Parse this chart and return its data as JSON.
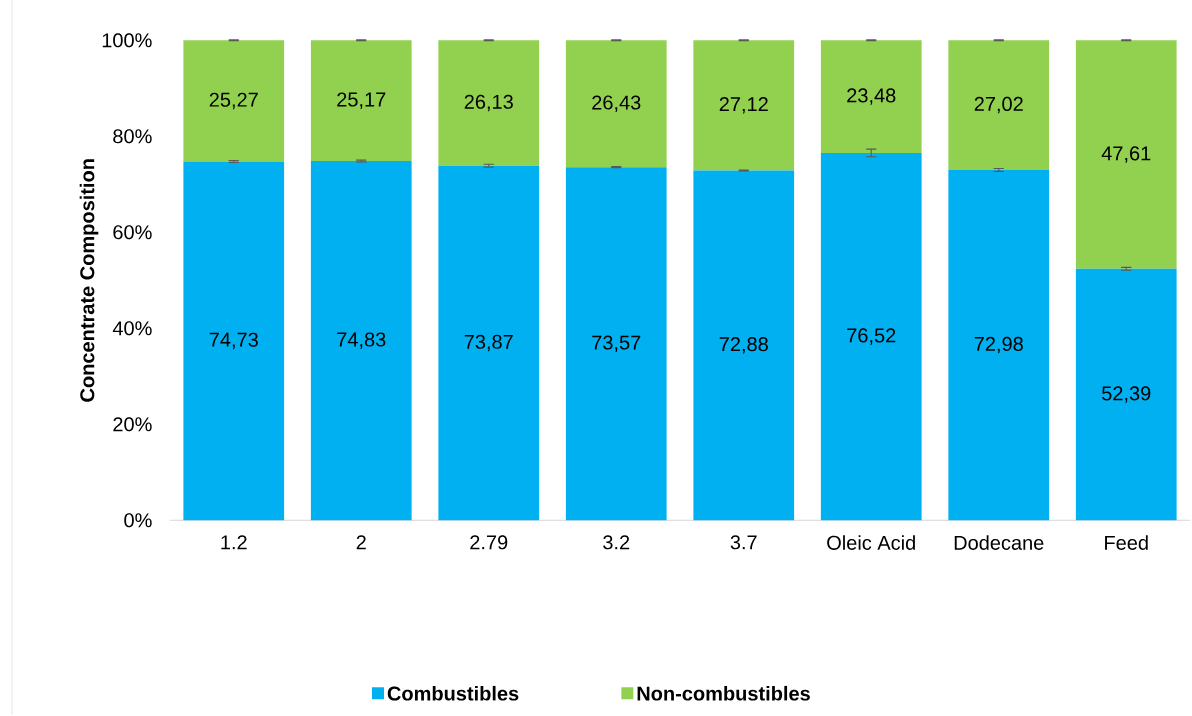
{
  "chart_data": {
    "type": "bar",
    "stacked": true,
    "ylabel": "Concentrate Composition",
    "categories": [
      "1.2",
      "2",
      "2.79",
      "3.2",
      "3.7",
      "Oleic Acid",
      "Dodecane",
      "Feed"
    ],
    "series": [
      {
        "name": "Combustibles",
        "color": "#00b0f0",
        "values": [
          74.73,
          74.83,
          73.87,
          73.57,
          72.88,
          76.52,
          72.98,
          52.39
        ],
        "value_labels": [
          "74,73",
          "74,83",
          "73,87",
          "73,57",
          "72,88",
          "76,52",
          "72,98",
          "52,39"
        ],
        "errors": [
          0.2,
          0.2,
          0.3,
          0.1,
          0.1,
          0.8,
          0.3,
          0.3
        ]
      },
      {
        "name": "Non-combustibles",
        "color": "#92d050",
        "values": [
          25.27,
          25.17,
          26.13,
          26.43,
          27.12,
          23.48,
          27.02,
          47.61
        ],
        "value_labels": [
          "25,27",
          "25,17",
          "26,13",
          "26,43",
          "27,12",
          "23,48",
          "27,02",
          "47,61"
        ],
        "errors": [
          0.1,
          0.1,
          0.1,
          0.1,
          0.1,
          0.1,
          0.1,
          0.1
        ]
      }
    ],
    "ylim": [
      0,
      100
    ],
    "yticks": [
      {
        "value": 0,
        "label": "0%"
      },
      {
        "value": 20,
        "label": "20%"
      },
      {
        "value": 40,
        "label": "40%"
      },
      {
        "value": 60,
        "label": "60%"
      },
      {
        "value": 80,
        "label": "80%"
      },
      {
        "value": 100,
        "label": "100%"
      }
    ],
    "legend": "bottom"
  }
}
